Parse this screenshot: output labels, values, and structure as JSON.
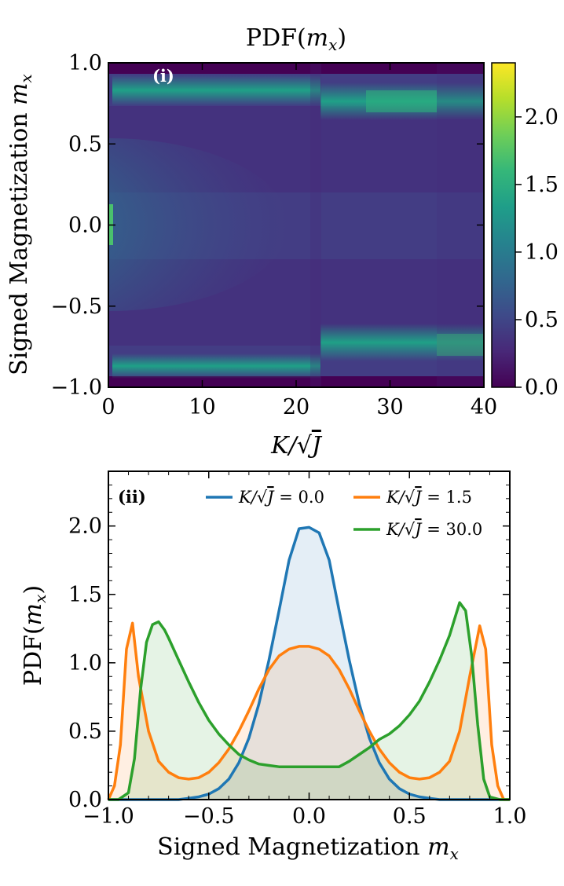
{
  "chart_data": [
    {
      "type": "heatmap",
      "panel_label": "(i)",
      "title": "PDF(m_x)",
      "title_parts": {
        "prefix": "PDF(",
        "var": "m",
        "sub": "x",
        "suffix": ")"
      },
      "xlabel_parts": {
        "k": "K",
        "slash": "/",
        "sqrt": "√",
        "j": "J"
      },
      "ylabel_parts": {
        "text": "Signed Magnetization ",
        "var": "m",
        "sub": "x"
      },
      "xlim": [
        0,
        40
      ],
      "ylim": [
        -1.0,
        1.0
      ],
      "x_ticks": [
        0,
        10,
        20,
        30,
        40
      ],
      "x_tick_labels": [
        "0",
        "10",
        "20",
        "30",
        "40"
      ],
      "y_ticks": [
        1.0,
        0.5,
        0.0,
        -0.5,
        -1.0
      ],
      "y_tick_labels": [
        "1.0",
        "0.5",
        "0.0",
        "−0.5",
        "−1.0"
      ],
      "colorbar": {
        "range": [
          0.0,
          2.4
        ],
        "ticks": [
          0.0,
          0.5,
          1.0,
          1.5,
          2.0
        ],
        "tick_labels": [
          "0.0",
          "0.5",
          "1.0",
          "1.5",
          "2.0"
        ],
        "colormap": [
          "#440154",
          "#482878",
          "#3e4a89",
          "#31688e",
          "#26828e",
          "#1f9e89",
          "#35b779",
          "#6ece58",
          "#b5de2b",
          "#fde725"
        ]
      },
      "profile_description": "Two ridges near m_x ≈ ±0.85 for K/√J < 22 moving to ±0.75 for large K/√J; central density near m_x = 0 fading as K/√J grows."
    },
    {
      "type": "line",
      "panel_label": "(ii)",
      "xlabel_parts": {
        "text": "Signed Magnetization ",
        "var": "m",
        "sub": "x"
      },
      "ylabel_parts": {
        "prefix": "PDF(",
        "var": "m",
        "sub": "x",
        "suffix": ")"
      },
      "xlim": [
        -1.0,
        1.0
      ],
      "ylim": [
        0.0,
        2.4
      ],
      "x_ticks": [
        -1.0,
        -0.5,
        0.0,
        0.5,
        1.0
      ],
      "x_tick_labels": [
        "−1.0",
        "−0.5",
        "0.0",
        "0.5",
        "1.0"
      ],
      "y_ticks": [
        0.0,
        0.5,
        1.0,
        1.5,
        2.0
      ],
      "y_tick_labels": [
        "0.0",
        "0.5",
        "1.0",
        "1.5",
        "2.0"
      ],
      "series": [
        {
          "name": "K/√J = 0.0",
          "legend_parts": {
            "k": "K",
            "slash": "/",
            "sqrt": "√",
            "j": "J",
            "eq": " = 0.0"
          },
          "color": "#1f77b4",
          "x": [
            -1.0,
            -0.95,
            -0.9,
            -0.85,
            -0.8,
            -0.75,
            -0.7,
            -0.65,
            -0.6,
            -0.55,
            -0.5,
            -0.45,
            -0.4,
            -0.35,
            -0.3,
            -0.25,
            -0.2,
            -0.15,
            -0.1,
            -0.05,
            0.0,
            0.05,
            0.1,
            0.15,
            0.2,
            0.25,
            0.3,
            0.35,
            0.4,
            0.45,
            0.5,
            0.55,
            0.6,
            0.65,
            0.7,
            0.75,
            0.8,
            0.85,
            0.9,
            0.95,
            1.0
          ],
          "y": [
            0.0,
            0.0,
            0.0,
            0.0,
            0.0,
            0.0,
            0.0,
            0.0,
            0.01,
            0.02,
            0.04,
            0.08,
            0.15,
            0.27,
            0.45,
            0.7,
            1.02,
            1.38,
            1.75,
            1.98,
            1.99,
            1.95,
            1.75,
            1.38,
            1.02,
            0.7,
            0.45,
            0.27,
            0.15,
            0.08,
            0.04,
            0.02,
            0.01,
            0.0,
            0.0,
            0.0,
            0.0,
            0.0,
            0.0,
            0.0,
            0.0
          ]
        },
        {
          "name": "K/√J = 1.5",
          "legend_parts": {
            "k": "K",
            "slash": "/",
            "sqrt": "√",
            "j": "J",
            "eq": " = 1.5"
          },
          "color": "#ff7f0e",
          "x": [
            -1.0,
            -0.97,
            -0.94,
            -0.91,
            -0.88,
            -0.85,
            -0.8,
            -0.75,
            -0.7,
            -0.65,
            -0.6,
            -0.55,
            -0.5,
            -0.45,
            -0.4,
            -0.35,
            -0.3,
            -0.25,
            -0.2,
            -0.15,
            -0.1,
            -0.05,
            0.0,
            0.05,
            0.1,
            0.15,
            0.2,
            0.25,
            0.3,
            0.35,
            0.4,
            0.45,
            0.5,
            0.55,
            0.6,
            0.65,
            0.7,
            0.75,
            0.8,
            0.85,
            0.88,
            0.91,
            0.94,
            0.97,
            1.0
          ],
          "y": [
            0.0,
            0.1,
            0.4,
            1.1,
            1.29,
            0.9,
            0.5,
            0.28,
            0.2,
            0.16,
            0.15,
            0.16,
            0.2,
            0.27,
            0.37,
            0.5,
            0.65,
            0.81,
            0.95,
            1.05,
            1.1,
            1.12,
            1.12,
            1.1,
            1.05,
            0.95,
            0.81,
            0.65,
            0.5,
            0.37,
            0.27,
            0.2,
            0.16,
            0.15,
            0.16,
            0.2,
            0.28,
            0.5,
            0.9,
            1.27,
            1.1,
            0.4,
            0.1,
            0.0,
            0.0
          ]
        },
        {
          "name": "K/√J = 30.0",
          "legend_parts": {
            "k": "K",
            "slash": "/",
            "sqrt": "√",
            "j": "J",
            "eq": " = 30.0"
          },
          "color": "#2ca02c",
          "x": [
            -1.0,
            -0.95,
            -0.9,
            -0.87,
            -0.84,
            -0.81,
            -0.78,
            -0.75,
            -0.72,
            -0.7,
            -0.65,
            -0.6,
            -0.55,
            -0.5,
            -0.45,
            -0.4,
            -0.35,
            -0.3,
            -0.25,
            -0.2,
            -0.15,
            -0.1,
            -0.05,
            0.0,
            0.05,
            0.1,
            0.15,
            0.2,
            0.25,
            0.3,
            0.35,
            0.4,
            0.45,
            0.5,
            0.55,
            0.6,
            0.65,
            0.7,
            0.75,
            0.78,
            0.81,
            0.84,
            0.87,
            0.9,
            0.95,
            1.0
          ],
          "y": [
            0.0,
            0.0,
            0.05,
            0.3,
            0.8,
            1.15,
            1.28,
            1.3,
            1.24,
            1.18,
            1.02,
            0.86,
            0.71,
            0.58,
            0.48,
            0.4,
            0.33,
            0.29,
            0.26,
            0.25,
            0.24,
            0.24,
            0.24,
            0.24,
            0.24,
            0.24,
            0.24,
            0.28,
            0.33,
            0.38,
            0.44,
            0.48,
            0.54,
            0.62,
            0.72,
            0.86,
            1.02,
            1.2,
            1.44,
            1.38,
            1.05,
            0.55,
            0.15,
            0.02,
            0.0,
            0.0
          ]
        }
      ]
    }
  ]
}
